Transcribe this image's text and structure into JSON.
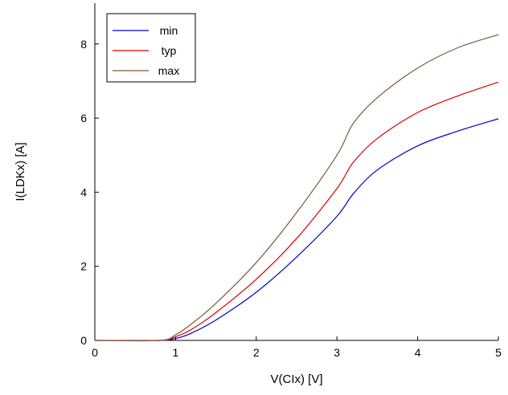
{
  "chart_data": {
    "type": "line",
    "xlabel": "V(CIx) [V]",
    "ylabel": "I(LDKx) [A]",
    "xlim": [
      0,
      5
    ],
    "ylim": [
      0,
      9.1
    ],
    "xticks": [
      "0",
      "1",
      "2",
      "3",
      "4",
      "5"
    ],
    "yticks": [
      "0",
      "2",
      "4",
      "6",
      "8"
    ],
    "grid": false,
    "legend_position": "top-left",
    "series": [
      {
        "name": "min",
        "color": "#0000cc",
        "x": [
          0,
          0.8,
          1.0,
          1.2,
          1.5,
          2.0,
          2.5,
          3.0,
          3.2,
          3.5,
          4.0,
          4.5,
          5.0
        ],
        "y": [
          0,
          0,
          0.05,
          0.2,
          0.55,
          1.3,
          2.25,
          3.35,
          3.95,
          4.6,
          5.25,
          5.65,
          5.98
        ]
      },
      {
        "name": "typ",
        "color": "#dd0000",
        "x": [
          0,
          0.8,
          1.0,
          1.2,
          1.5,
          2.0,
          2.5,
          3.0,
          3.2,
          3.5,
          4.0,
          4.5,
          5.0
        ],
        "y": [
          0,
          0,
          0.1,
          0.3,
          0.75,
          1.65,
          2.75,
          4.1,
          4.8,
          5.45,
          6.15,
          6.6,
          6.97
        ]
      },
      {
        "name": "max",
        "color": "#7a5a3a",
        "x": [
          0,
          0.8,
          1.0,
          1.2,
          1.5,
          2.0,
          2.5,
          3.0,
          3.2,
          3.5,
          4.0,
          4.5,
          5.0
        ],
        "y": [
          0,
          0,
          0.15,
          0.45,
          1.0,
          2.1,
          3.45,
          5.0,
          5.85,
          6.55,
          7.35,
          7.9,
          8.25
        ]
      }
    ]
  }
}
